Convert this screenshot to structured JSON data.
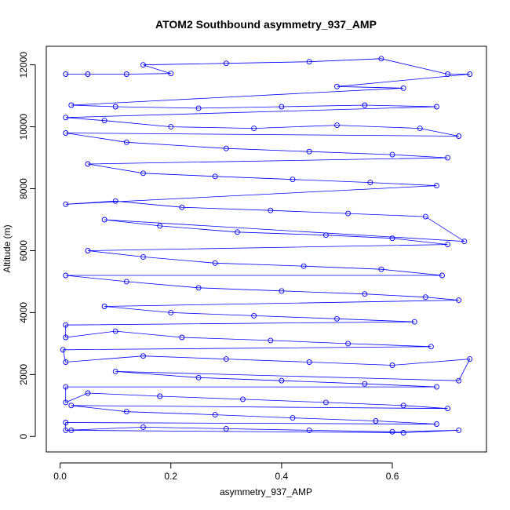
{
  "chart_data": {
    "type": "scatter",
    "title": "ATOM2 Southbound asymmetry_937_AMP",
    "xlabel": "asymmetry_937_AMP",
    "ylabel": "Altitude (m)",
    "xlim": [
      -0.025,
      0.77
    ],
    "ylim": [
      -500,
      12600
    ],
    "x_ticks": [
      0.0,
      0.2,
      0.4,
      0.6
    ],
    "x_tick_labels": [
      "0.0",
      "0.2",
      "0.4",
      "0.6"
    ],
    "y_ticks": [
      0,
      2000,
      4000,
      6000,
      8000,
      10000,
      12000
    ],
    "y_tick_labels": [
      "0",
      "2000",
      "4000",
      "6000",
      "8000",
      "10000",
      "12000"
    ],
    "grid": false,
    "series": [
      {
        "color": "#0000ff",
        "marker": "open-circle",
        "connected": true,
        "points": [
          [
            0.01,
            11700
          ],
          [
            0.05,
            11700
          ],
          [
            0.12,
            11700
          ],
          [
            0.2,
            11720
          ],
          [
            0.15,
            12000
          ],
          [
            0.3,
            12050
          ],
          [
            0.45,
            12100
          ],
          [
            0.58,
            12200
          ],
          [
            0.7,
            11700
          ],
          [
            0.74,
            11700
          ],
          [
            0.5,
            11300
          ],
          [
            0.62,
            11250
          ],
          [
            0.02,
            10700
          ],
          [
            0.1,
            10650
          ],
          [
            0.25,
            10600
          ],
          [
            0.4,
            10650
          ],
          [
            0.55,
            10700
          ],
          [
            0.68,
            10650
          ],
          [
            0.01,
            10300
          ],
          [
            0.08,
            10200
          ],
          [
            0.2,
            10000
          ],
          [
            0.35,
            9950
          ],
          [
            0.5,
            10050
          ],
          [
            0.65,
            9950
          ],
          [
            0.72,
            9700
          ],
          [
            0.01,
            9800
          ],
          [
            0.12,
            9500
          ],
          [
            0.3,
            9300
          ],
          [
            0.45,
            9200
          ],
          [
            0.6,
            9100
          ],
          [
            0.7,
            9000
          ],
          [
            0.05,
            8800
          ],
          [
            0.15,
            8500
          ],
          [
            0.28,
            8400
          ],
          [
            0.42,
            8300
          ],
          [
            0.56,
            8200
          ],
          [
            0.68,
            8100
          ],
          [
            0.01,
            7500
          ],
          [
            0.1,
            7600
          ],
          [
            0.22,
            7400
          ],
          [
            0.38,
            7300
          ],
          [
            0.52,
            7200
          ],
          [
            0.66,
            7100
          ],
          [
            0.73,
            6300
          ],
          [
            0.08,
            7000
          ],
          [
            0.18,
            6800
          ],
          [
            0.32,
            6600
          ],
          [
            0.48,
            6500
          ],
          [
            0.6,
            6400
          ],
          [
            0.7,
            6200
          ],
          [
            0.05,
            6000
          ],
          [
            0.15,
            5800
          ],
          [
            0.28,
            5600
          ],
          [
            0.44,
            5500
          ],
          [
            0.58,
            5400
          ],
          [
            0.69,
            5200
          ],
          [
            0.01,
            5200
          ],
          [
            0.12,
            5000
          ],
          [
            0.25,
            4800
          ],
          [
            0.4,
            4700
          ],
          [
            0.55,
            4600
          ],
          [
            0.66,
            4500
          ],
          [
            0.72,
            4400
          ],
          [
            0.08,
            4200
          ],
          [
            0.2,
            4000
          ],
          [
            0.35,
            3900
          ],
          [
            0.5,
            3800
          ],
          [
            0.64,
            3700
          ],
          [
            0.01,
            3600
          ],
          [
            0.01,
            3200
          ],
          [
            0.1,
            3400
          ],
          [
            0.22,
            3200
          ],
          [
            0.38,
            3100
          ],
          [
            0.52,
            3000
          ],
          [
            0.67,
            2900
          ],
          [
            0.005,
            2800
          ],
          [
            0.01,
            2400
          ],
          [
            0.15,
            2600
          ],
          [
            0.3,
            2500
          ],
          [
            0.45,
            2400
          ],
          [
            0.6,
            2300
          ],
          [
            0.74,
            2500
          ],
          [
            0.72,
            1800
          ],
          [
            0.1,
            2100
          ],
          [
            0.25,
            1900
          ],
          [
            0.4,
            1800
          ],
          [
            0.55,
            1700
          ],
          [
            0.68,
            1600
          ],
          [
            0.01,
            1600
          ],
          [
            0.01,
            1100
          ],
          [
            0.05,
            1400
          ],
          [
            0.18,
            1300
          ],
          [
            0.33,
            1200
          ],
          [
            0.48,
            1100
          ],
          [
            0.62,
            1000
          ],
          [
            0.7,
            900
          ],
          [
            0.02,
            1000
          ],
          [
            0.12,
            800
          ],
          [
            0.28,
            700
          ],
          [
            0.42,
            600
          ],
          [
            0.57,
            500
          ],
          [
            0.68,
            400
          ],
          [
            0.01,
            450
          ],
          [
            0.01,
            200
          ],
          [
            0.15,
            300
          ],
          [
            0.3,
            250
          ],
          [
            0.45,
            200
          ],
          [
            0.6,
            150
          ],
          [
            0.72,
            200
          ],
          [
            0.62,
            120
          ],
          [
            0.02,
            200
          ]
        ]
      }
    ]
  }
}
